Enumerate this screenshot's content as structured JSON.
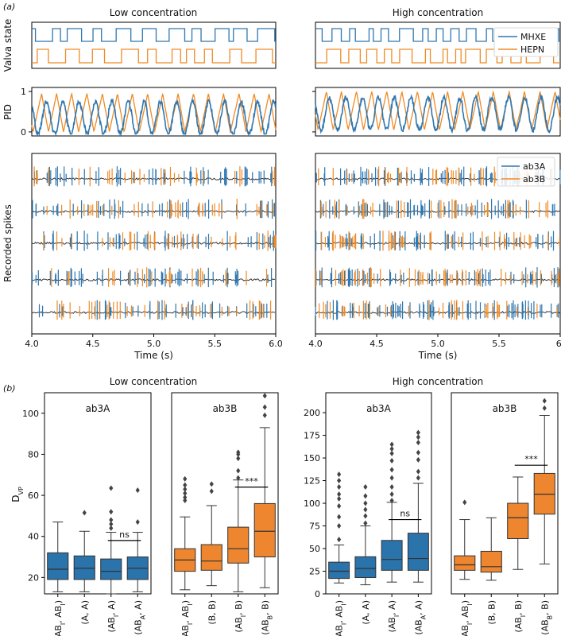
{
  "panel_a_label": "(a)",
  "panel_b_label": "(b)",
  "colors": {
    "blue": "#2e77b1",
    "orange": "#f08a24",
    "black": "#222222",
    "box_blue": "#2a73ab",
    "box_orange": "#ee8630"
  },
  "chart_data": [
    {
      "type": "line",
      "id": "valve",
      "ylabel": "Valva state",
      "legend": [
        "MHXE",
        "HEPN"
      ],
      "legend_position": "top-right",
      "columns": [
        "Low concentration",
        "High concentration"
      ],
      "x": [
        4.0,
        6.0
      ]
    },
    {
      "type": "line",
      "id": "pid",
      "ylabel": "PID",
      "yticks": [
        "0",
        "1"
      ],
      "ylim": [
        -0.1,
        1.1
      ]
    },
    {
      "type": "line",
      "id": "spikes",
      "ylabel": "Recorded spikes",
      "legend": [
        "ab3A",
        "ab3B"
      ],
      "legend_position": "top-right",
      "trials": 5,
      "xlabel": "Time (s)",
      "xticks": [
        "4.0",
        "4.5",
        "5.0",
        "5.5",
        "6.0"
      ],
      "xticks_right": [
        "4.0",
        "4.5",
        "5.0",
        "5.5",
        "6."
      ],
      "xlim": [
        4.0,
        6.0
      ]
    },
    {
      "type": "box",
      "id": "boxplots",
      "ylabel_main": "D",
      "ylabel_sub": "VP",
      "low_title": "Low concentration",
      "high_title": "High concentration",
      "panels": [
        {
          "title": "ab3A",
          "color": "blue",
          "categories": [
            [
              "(AB",
              "I",
              ", AB",
              "I",
              ")"
            ],
            [
              "(A, A)",
              "",
              "",
              "",
              ""
            ],
            [
              "(AB",
              "I",
              ", A)",
              "",
              ""
            ],
            [
              "(AB",
              "A",
              ", A)",
              "",
              ""
            ]
          ],
          "stats": [
            {
              "lo": 13,
              "q1": 19,
              "med": 24,
              "q3": 32,
              "hi": 47,
              "fl": []
            },
            {
              "lo": 13,
              "q1": 19,
              "med": 24.5,
              "q3": 30.5,
              "hi": 42.5,
              "fl": [
                51.5
              ]
            },
            {
              "lo": 12,
              "q1": 19,
              "med": 23,
              "q3": 29,
              "hi": 42,
              "fl": [
                44,
                46,
                48,
                52,
                63.5
              ]
            },
            {
              "lo": 13,
              "q1": 19,
              "med": 24.5,
              "q3": 30,
              "hi": 42,
              "fl": [
                47,
                62.5
              ]
            }
          ],
          "ylim": [
            12,
            110
          ],
          "yticks": [
            20,
            40,
            60,
            80,
            100
          ],
          "sig": {
            "label": "ns",
            "from": 2,
            "to": 3,
            "y": 38
          }
        },
        {
          "title": "ab3B",
          "color": "orange",
          "categories": [
            [
              "(AB",
              "I",
              ", AB",
              "I",
              ")"
            ],
            [
              "(B, B)",
              "",
              "",
              "",
              ""
            ],
            [
              "(AB",
              "I",
              ", B)",
              "",
              ""
            ],
            [
              "(AB",
              "B",
              ", B)",
              "",
              ""
            ]
          ],
          "stats": [
            {
              "lo": 14,
              "q1": 23,
              "med": 28.5,
              "q3": 34,
              "hi": 49.5,
              "fl": [
                57.5,
                59,
                61,
                63,
                65,
                68
              ]
            },
            {
              "lo": 16,
              "q1": 23.5,
              "med": 28,
              "q3": 36,
              "hi": 55,
              "fl": [
                62,
                65.5
              ]
            },
            {
              "lo": 13,
              "q1": 27,
              "med": 34,
              "q3": 44.5,
              "hi": 67.5,
              "fl": [
                68.5,
                72,
                78,
                80,
                81
              ]
            },
            {
              "lo": 15,
              "q1": 30,
              "med": 42.5,
              "q3": 56,
              "hi": 93,
              "fl": [
                99,
                103,
                108.5
              ]
            }
          ],
          "ylim": [
            12,
            110
          ],
          "yticks": [],
          "sig": {
            "label": "***",
            "from": 2,
            "to": 3,
            "y": 64
          }
        },
        {
          "title": "ab3A",
          "color": "blue",
          "categories": [
            [
              "(AB",
              "I",
              ", AB",
              "I",
              ")"
            ],
            [
              "(A, A)",
              "",
              "",
              "",
              ""
            ],
            [
              "(AB",
              "I",
              ", A)",
              "",
              ""
            ],
            [
              "(AB",
              "A",
              ", A)",
              "",
              ""
            ]
          ],
          "stats": [
            {
              "lo": 12,
              "q1": 17,
              "med": 25,
              "q3": 35,
              "hi": 54,
              "fl": [
                60,
                75,
                85,
                97,
                105,
                110,
                118,
                125,
                132
              ]
            },
            {
              "lo": 10,
              "q1": 18,
              "med": 28,
              "q3": 41,
              "hi": 75,
              "fl": [
                78,
                86,
                93,
                100,
                108,
                118
              ]
            },
            {
              "lo": 13,
              "q1": 26,
              "med": 38,
              "q3": 59,
              "hi": 101,
              "fl": [
                103,
                110,
                118,
                128,
                137,
                147,
                155,
                160,
                165
              ]
            },
            {
              "lo": 13,
              "q1": 26,
              "med": 39,
              "q3": 67,
              "hi": 122,
              "fl": [
                128,
                135,
                148,
                156,
                167,
                173,
                178
              ]
            }
          ],
          "ylim": [
            0,
            222
          ],
          "yticks": [
            0,
            25,
            50,
            75,
            100,
            125,
            150,
            175,
            200
          ],
          "sig": {
            "label": "ns",
            "from": 2,
            "to": 3,
            "y": 82
          }
        },
        {
          "title": "ab3B",
          "color": "orange",
          "categories": [
            [
              "(AB",
              "I",
              ", AB",
              "I",
              ")"
            ],
            [
              "(B, B)",
              "",
              "",
              "",
              ""
            ],
            [
              "(AB",
              "I",
              ", B)",
              "",
              ""
            ],
            [
              "(AB",
              "B",
              ", B)",
              "",
              ""
            ]
          ],
          "stats": [
            {
              "lo": 16,
              "q1": 26,
              "med": 32,
              "q3": 42,
              "hi": 82,
              "fl": [
                101
              ]
            },
            {
              "lo": 15,
              "q1": 24,
              "med": 30,
              "q3": 47,
              "hi": 84,
              "fl": []
            },
            {
              "lo": 27,
              "q1": 61,
              "med": 84,
              "q3": 100,
              "hi": 129,
              "fl": []
            },
            {
              "lo": 33,
              "q1": 88,
              "med": 110,
              "q3": 133,
              "hi": 197,
              "fl": [
                205,
                213
              ]
            }
          ],
          "ylim": [
            0,
            222
          ],
          "yticks": [],
          "sig": {
            "label": "***",
            "from": 2,
            "to": 3,
            "y": 142
          }
        }
      ]
    }
  ]
}
